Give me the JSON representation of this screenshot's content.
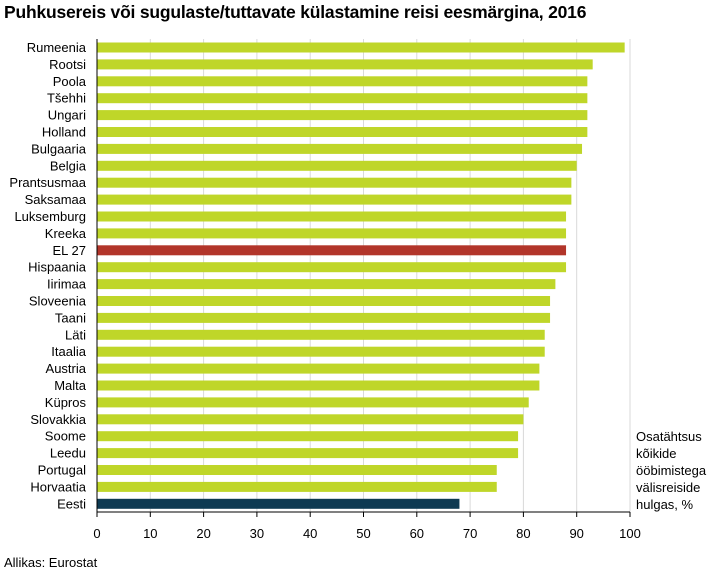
{
  "chart_data": {
    "type": "bar",
    "orientation": "horizontal",
    "title": "Puhkusereis või sugulaste/tuttavate külastamine reisi eesmärgina, 2016",
    "categories": [
      "Rumeenia",
      "Rootsi",
      "Poola",
      "Tšehhi",
      "Ungari",
      "Holland",
      "Bulgaaria",
      "Belgia",
      "Prantsusmaa",
      "Saksamaa",
      "Luksemburg",
      "Kreeka",
      "EL 27",
      "Hispaania",
      "Iirimaa",
      "Sloveenia",
      "Taani",
      "Läti",
      "Itaalia",
      "Austria",
      "Malta",
      "Küpros",
      "Slovakkia",
      "Soome",
      "Leedu",
      "Portugal",
      "Horvaatia",
      "Eesti"
    ],
    "values": [
      99,
      93,
      92,
      92,
      92,
      92,
      91,
      90,
      89,
      89,
      88,
      88,
      88,
      88,
      86,
      85,
      85,
      84,
      84,
      83,
      83,
      81,
      80,
      79,
      79,
      75,
      75,
      68
    ],
    "xlim": [
      0,
      100
    ],
    "xticks": [
      0,
      10,
      20,
      30,
      40,
      50,
      60,
      70,
      80,
      90,
      100
    ],
    "grid": true,
    "unit_label": "Osatähtsus\nkõikide\nööbimistega\nvälisreiside\nhulgas, %",
    "colors": {
      "default": "#bfd629",
      "EL 27": "#b2352a",
      "Eesti": "#0e3a52"
    }
  },
  "source": "Allikas: Eurostat"
}
